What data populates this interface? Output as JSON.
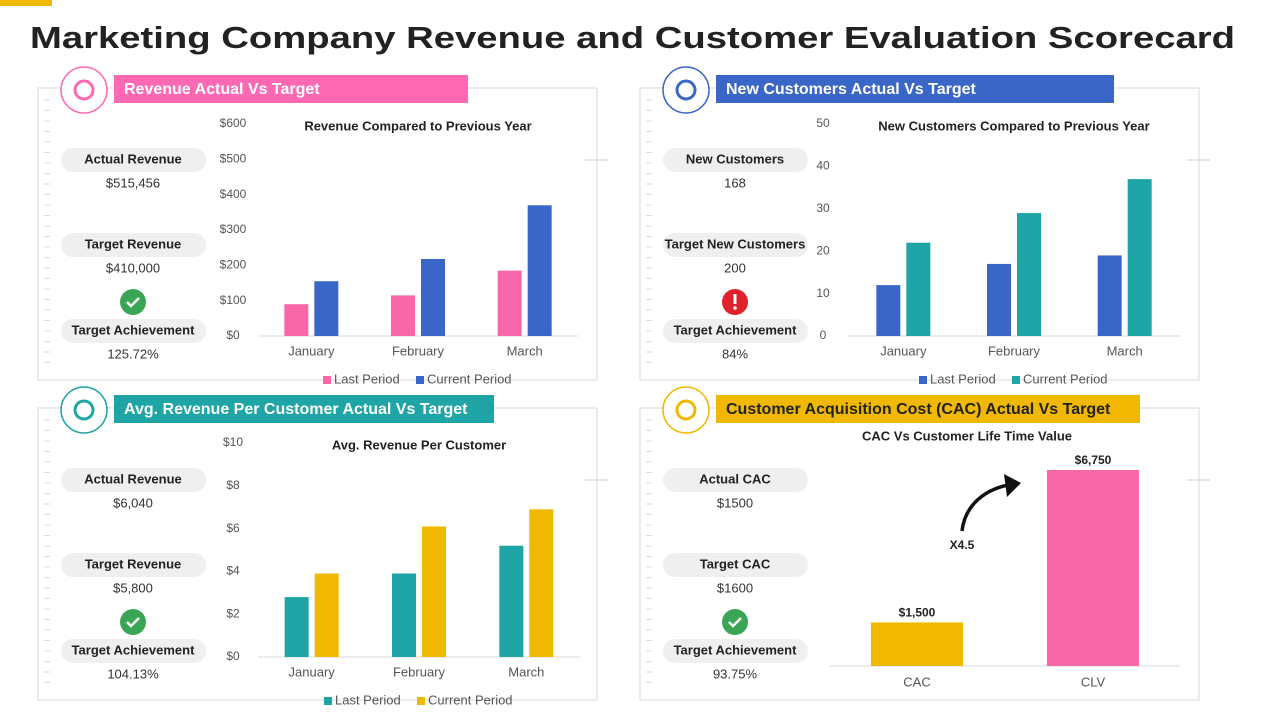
{
  "title": "Marketing Company Revenue and Customer Evaluation Scorecard",
  "panels": [
    {
      "header": "Revenue Actual Vs Target",
      "kpis": [
        {
          "label": "Actual Revenue",
          "value": "$515,456"
        },
        {
          "label": "Target Revenue",
          "value": "$410,000"
        },
        {
          "label": "Target Achievement",
          "value": "125.72%"
        }
      ]
    },
    {
      "header": "New Customers Actual Vs Target",
      "kpis": [
        {
          "label": "New Customers",
          "value": "168"
        },
        {
          "label": "Target New Customers",
          "value": "200"
        },
        {
          "label": "Target Achievement",
          "value": "84%"
        }
      ]
    },
    {
      "header": "Avg. Revenue Per Customer Actual Vs Target",
      "kpis": [
        {
          "label": "Actual Revenue",
          "value": "$6,040"
        },
        {
          "label": "Target Revenue",
          "value": "$5,800"
        },
        {
          "label": "Target Achievement",
          "value": "104.13%"
        }
      ]
    },
    {
      "header": "Customer Acquisition Cost (CAC) Actual Vs Target",
      "kpis": [
        {
          "label": "Actual CAC",
          "value": "$1500"
        },
        {
          "label": "Target CAC",
          "value": "$1600"
        },
        {
          "label": "Target Achievement",
          "value": "93.75%"
        }
      ]
    }
  ],
  "chart_data": [
    {
      "type": "bar",
      "title": "Revenue  Compared to Previous Year",
      "categories": [
        "January",
        "February",
        "March"
      ],
      "series": [
        {
          "name": "Last Period",
          "color": "#f868a8",
          "values": [
            90,
            115,
            185
          ]
        },
        {
          "name": "Current Period",
          "color": "#3a66c8",
          "values": [
            155,
            218,
            370
          ]
        }
      ],
      "ylim": [
        0,
        600
      ],
      "yticks": [
        {
          "value": 0,
          "label": "$0"
        },
        {
          "value": 100,
          "label": "$100"
        },
        {
          "value": 200,
          "label": "$200"
        },
        {
          "value": 300,
          "label": "$300"
        },
        {
          "value": 400,
          "label": "$400"
        },
        {
          "value": 500,
          "label": "$500"
        },
        {
          "value": 600,
          "label": "$600"
        }
      ]
    },
    {
      "type": "bar",
      "title": "New Customers Compared to Previous Year",
      "categories": [
        "January",
        "February",
        "March"
      ],
      "series": [
        {
          "name": "Last Period",
          "color": "#3a66c8",
          "values": [
            12,
            17,
            19
          ]
        },
        {
          "name": "Current Period",
          "color": "#1fa5a5",
          "values": [
            22,
            29,
            37
          ]
        }
      ],
      "ylim": [
        0,
        50
      ],
      "yticks": [
        0,
        10,
        20,
        30,
        40,
        50
      ]
    },
    {
      "type": "bar",
      "title": "Avg. Revenue Per Customer",
      "categories": [
        "January",
        "February",
        "March"
      ],
      "series": [
        {
          "name": "Last Period",
          "color": "#1fa5a5",
          "values": [
            2.8,
            3.9,
            5.2
          ]
        },
        {
          "name": "Current Period",
          "color": "#f0b800",
          "values": [
            3.9,
            6.1,
            6.9
          ]
        }
      ],
      "ylim": [
        0,
        10
      ],
      "yticks": [
        {
          "value": 0,
          "label": "$0"
        },
        {
          "value": 2,
          "label": "$2"
        },
        {
          "value": 4,
          "label": "$4"
        },
        {
          "value": 6,
          "label": "$6"
        },
        {
          "value": 8,
          "label": "$8"
        },
        {
          "value": 10,
          "label": "$10"
        }
      ]
    },
    {
      "type": "bar",
      "title": "CAC Vs Customer Life Time Value",
      "categories": [
        "CAC",
        "CLV"
      ],
      "values": [
        1500,
        6750
      ],
      "value_labels": [
        "$1,500",
        "$6,750"
      ],
      "colors": [
        "#f0b800",
        "#f868a8"
      ],
      "annotation": "X4.5"
    }
  ]
}
